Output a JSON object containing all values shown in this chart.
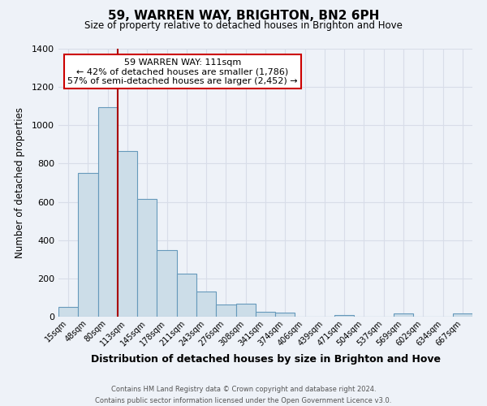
{
  "title": "59, WARREN WAY, BRIGHTON, BN2 6PH",
  "subtitle": "Size of property relative to detached houses in Brighton and Hove",
  "xlabel": "Distribution of detached houses by size in Brighton and Hove",
  "ylabel": "Number of detached properties",
  "bar_labels": [
    "15sqm",
    "48sqm",
    "80sqm",
    "113sqm",
    "145sqm",
    "178sqm",
    "211sqm",
    "243sqm",
    "276sqm",
    "308sqm",
    "341sqm",
    "374sqm",
    "406sqm",
    "439sqm",
    "471sqm",
    "504sqm",
    "537sqm",
    "569sqm",
    "602sqm",
    "634sqm",
    "667sqm"
  ],
  "bar_values": [
    50,
    750,
    1095,
    865,
    615,
    348,
    225,
    130,
    65,
    70,
    25,
    20,
    0,
    0,
    10,
    0,
    0,
    18,
    0,
    0,
    15
  ],
  "bar_color": "#ccdde8",
  "bar_edgecolor": "#6699bb",
  "vline_color": "#aa0000",
  "ylim": [
    0,
    1400
  ],
  "yticks": [
    0,
    200,
    400,
    600,
    800,
    1000,
    1200,
    1400
  ],
  "annotation_title": "59 WARREN WAY: 111sqm",
  "annotation_line1": "← 42% of detached houses are smaller (1,786)",
  "annotation_line2": "57% of semi-detached houses are larger (2,452) →",
  "annotation_box_color": "#ffffff",
  "annotation_box_edgecolor": "#cc0000",
  "footer1": "Contains HM Land Registry data © Crown copyright and database right 2024.",
  "footer2": "Contains public sector information licensed under the Open Government Licence v3.0.",
  "bg_color": "#eef2f8",
  "grid_color": "#d8dde8"
}
